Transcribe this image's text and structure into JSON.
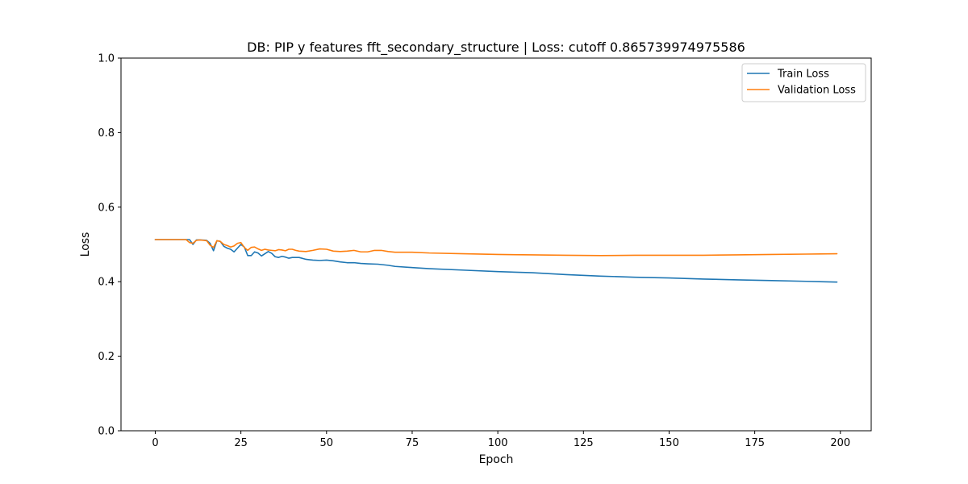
{
  "chart_data": {
    "type": "line",
    "title": "DB: PIP y features fft_secondary_structure | Loss: cutoff 0.865739974975586",
    "xlabel": "Epoch",
    "ylabel": "Loss",
    "xlim": [
      -10,
      209
    ],
    "ylim": [
      0,
      1
    ],
    "xticks": [
      0,
      25,
      50,
      75,
      100,
      125,
      150,
      175,
      200
    ],
    "yticks": [
      0.0,
      0.2,
      0.4,
      0.6,
      0.8,
      1.0
    ],
    "xtick_labels": [
      "0",
      "25",
      "50",
      "75",
      "100",
      "125",
      "150",
      "175",
      "200"
    ],
    "ytick_labels": [
      "0.0",
      "0.2",
      "0.4",
      "0.6",
      "0.8",
      "1.0"
    ],
    "grid": false,
    "legend_position": "top-right",
    "series": [
      {
        "name": "Train Loss",
        "color": "#1f77b4",
        "points": [
          [
            0,
            0.513
          ],
          [
            5,
            0.513
          ],
          [
            9,
            0.513
          ],
          [
            10,
            0.513
          ],
          [
            11,
            0.5
          ],
          [
            12,
            0.512
          ],
          [
            13,
            0.512
          ],
          [
            15,
            0.511
          ],
          [
            16,
            0.503
          ],
          [
            17,
            0.483
          ],
          [
            18,
            0.51
          ],
          [
            19,
            0.508
          ],
          [
            20,
            0.495
          ],
          [
            21,
            0.49
          ],
          [
            22,
            0.487
          ],
          [
            23,
            0.48
          ],
          [
            24,
            0.49
          ],
          [
            25,
            0.5
          ],
          [
            26,
            0.493
          ],
          [
            27,
            0.47
          ],
          [
            28,
            0.47
          ],
          [
            29,
            0.48
          ],
          [
            30,
            0.477
          ],
          [
            31,
            0.469
          ],
          [
            32,
            0.475
          ],
          [
            33,
            0.481
          ],
          [
            34,
            0.476
          ],
          [
            35,
            0.467
          ],
          [
            36,
            0.465
          ],
          [
            37,
            0.468
          ],
          [
            38,
            0.466
          ],
          [
            39,
            0.463
          ],
          [
            40,
            0.465
          ],
          [
            42,
            0.465
          ],
          [
            44,
            0.46
          ],
          [
            46,
            0.458
          ],
          [
            48,
            0.457
          ],
          [
            50,
            0.458
          ],
          [
            52,
            0.456
          ],
          [
            54,
            0.453
          ],
          [
            56,
            0.451
          ],
          [
            58,
            0.451
          ],
          [
            60,
            0.449
          ],
          [
            62,
            0.448
          ],
          [
            65,
            0.447
          ],
          [
            68,
            0.444
          ],
          [
            70,
            0.441
          ],
          [
            75,
            0.438
          ],
          [
            80,
            0.435
          ],
          [
            90,
            0.431
          ],
          [
            100,
            0.427
          ],
          [
            110,
            0.424
          ],
          [
            120,
            0.419
          ],
          [
            130,
            0.415
          ],
          [
            140,
            0.412
          ],
          [
            150,
            0.41
          ],
          [
            160,
            0.407
          ],
          [
            170,
            0.405
          ],
          [
            180,
            0.403
          ],
          [
            190,
            0.401
          ],
          [
            199,
            0.399
          ]
        ]
      },
      {
        "name": "Validation Loss",
        "color": "#ff7f0e",
        "points": [
          [
            0,
            0.513
          ],
          [
            5,
            0.513
          ],
          [
            9,
            0.513
          ],
          [
            10,
            0.505
          ],
          [
            11,
            0.503
          ],
          [
            12,
            0.511
          ],
          [
            13,
            0.512
          ],
          [
            15,
            0.51
          ],
          [
            16,
            0.498
          ],
          [
            17,
            0.492
          ],
          [
            18,
            0.51
          ],
          [
            19,
            0.508
          ],
          [
            20,
            0.5
          ],
          [
            21,
            0.497
          ],
          [
            22,
            0.493
          ],
          [
            23,
            0.496
          ],
          [
            24,
            0.503
          ],
          [
            25,
            0.505
          ],
          [
            26,
            0.492
          ],
          [
            27,
            0.484
          ],
          [
            28,
            0.492
          ],
          [
            29,
            0.493
          ],
          [
            30,
            0.488
          ],
          [
            31,
            0.484
          ],
          [
            32,
            0.487
          ],
          [
            33,
            0.485
          ],
          [
            34,
            0.484
          ],
          [
            35,
            0.483
          ],
          [
            36,
            0.486
          ],
          [
            37,
            0.485
          ],
          [
            38,
            0.483
          ],
          [
            39,
            0.487
          ],
          [
            40,
            0.487
          ],
          [
            41,
            0.484
          ],
          [
            42,
            0.482
          ],
          [
            44,
            0.481
          ],
          [
            46,
            0.484
          ],
          [
            48,
            0.488
          ],
          [
            50,
            0.487
          ],
          [
            52,
            0.482
          ],
          [
            54,
            0.481
          ],
          [
            56,
            0.482
          ],
          [
            58,
            0.484
          ],
          [
            60,
            0.48
          ],
          [
            62,
            0.48
          ],
          [
            64,
            0.484
          ],
          [
            66,
            0.484
          ],
          [
            68,
            0.481
          ],
          [
            70,
            0.479
          ],
          [
            75,
            0.479
          ],
          [
            80,
            0.477
          ],
          [
            90,
            0.475
          ],
          [
            100,
            0.473
          ],
          [
            110,
            0.472
          ],
          [
            120,
            0.471
          ],
          [
            130,
            0.47
          ],
          [
            140,
            0.471
          ],
          [
            150,
            0.471
          ],
          [
            160,
            0.471
          ],
          [
            170,
            0.472
          ],
          [
            180,
            0.473
          ],
          [
            190,
            0.474
          ],
          [
            199,
            0.475
          ]
        ]
      }
    ]
  }
}
